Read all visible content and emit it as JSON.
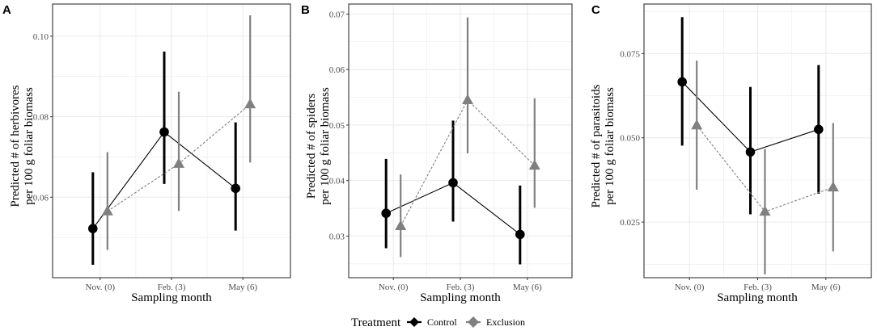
{
  "chart_data": [
    {
      "type": "scatter",
      "panel_label": "A",
      "title": "",
      "xlabel": "Sampling month",
      "ylabel": [
        "Predicted # of herbivores",
        "per 100 g foliar biomass"
      ],
      "categories": [
        "Nov. (0)",
        "Feb. (3)",
        "May (6)"
      ],
      "ylim": [
        0.04,
        0.108
      ],
      "yticks": [
        0.06,
        0.08,
        0.1
      ],
      "ytick_labels": [
        "0.06",
        "0.08",
        "0.10"
      ],
      "series": [
        {
          "name": "Control",
          "values": [
            0.0522,
            0.0762,
            0.0622
          ],
          "lower": [
            0.0432,
            0.0633,
            0.0517
          ],
          "upper": [
            0.0662,
            0.0962,
            0.0786
          ]
        },
        {
          "name": "Exclusion",
          "values": [
            0.0565,
            0.0683,
            0.0831
          ],
          "lower": [
            0.0469,
            0.0566,
            0.0686
          ],
          "upper": [
            0.0712,
            0.0862,
            0.1052
          ]
        }
      ]
    },
    {
      "type": "scatter",
      "panel_label": "B",
      "title": "",
      "xlabel": "Sampling month",
      "ylabel": [
        "Predicted # of spiders",
        "per 100 g foliar biomass"
      ],
      "categories": [
        "Nov. (0)",
        "Feb. (3)",
        "May (6)"
      ],
      "ylim": [
        0.0225,
        0.0718
      ],
      "yticks": [
        0.03,
        0.04,
        0.05,
        0.06,
        0.07
      ],
      "ytick_labels": [
        "0.03",
        "0.04",
        "0.05",
        "0.06",
        "0.07"
      ],
      "series": [
        {
          "name": "Control",
          "values": [
            0.0341,
            0.0396,
            0.0303
          ],
          "lower": [
            0.0278,
            0.0326,
            0.0249
          ],
          "upper": [
            0.0439,
            0.0508,
            0.0391
          ]
        },
        {
          "name": "Exclusion",
          "values": [
            0.0318,
            0.0545,
            0.0427
          ],
          "lower": [
            0.0262,
            0.0449,
            0.0351
          ],
          "upper": [
            0.0411,
            0.0694,
            0.0548
          ]
        }
      ]
    },
    {
      "type": "scatter",
      "panel_label": "C",
      "title": "",
      "xlabel": "Sampling month",
      "ylabel": [
        "Predicted # of parasitoids",
        "per 100 g foliar biomass"
      ],
      "categories": [
        "Nov. (0)",
        "Feb. (3)",
        "May (6)"
      ],
      "ylim": [
        0.0085,
        0.0897
      ],
      "yticks": [
        0.025,
        0.05,
        0.075
      ],
      "ytick_labels": [
        "0.025",
        "0.050",
        "0.075"
      ],
      "series": [
        {
          "name": "Control",
          "values": [
            0.0666,
            0.0458,
            0.0525
          ],
          "lower": [
            0.0477,
            0.0273,
            0.0334
          ],
          "upper": [
            0.0858,
            0.0651,
            0.0716
          ]
        },
        {
          "name": "Exclusion",
          "values": [
            0.0537,
            0.0281,
            0.0353
          ],
          "lower": [
            0.0346,
            0.0095,
            0.0163
          ],
          "upper": [
            0.0729,
            0.0467,
            0.0544
          ]
        }
      ]
    }
  ],
  "legend": {
    "title": "Treatment",
    "entries": [
      {
        "label": "Control",
        "color": "#000000",
        "shape": "circle"
      },
      {
        "label": "Exclusion",
        "color": "#808080",
        "shape": "triangle"
      }
    ],
    "placement": "bottom"
  },
  "colors": {
    "control": "#000000",
    "exclusion": "#808080",
    "grid": "#ebebeb",
    "panel_border": "#333333",
    "tick_text": "#4d4d4d"
  }
}
